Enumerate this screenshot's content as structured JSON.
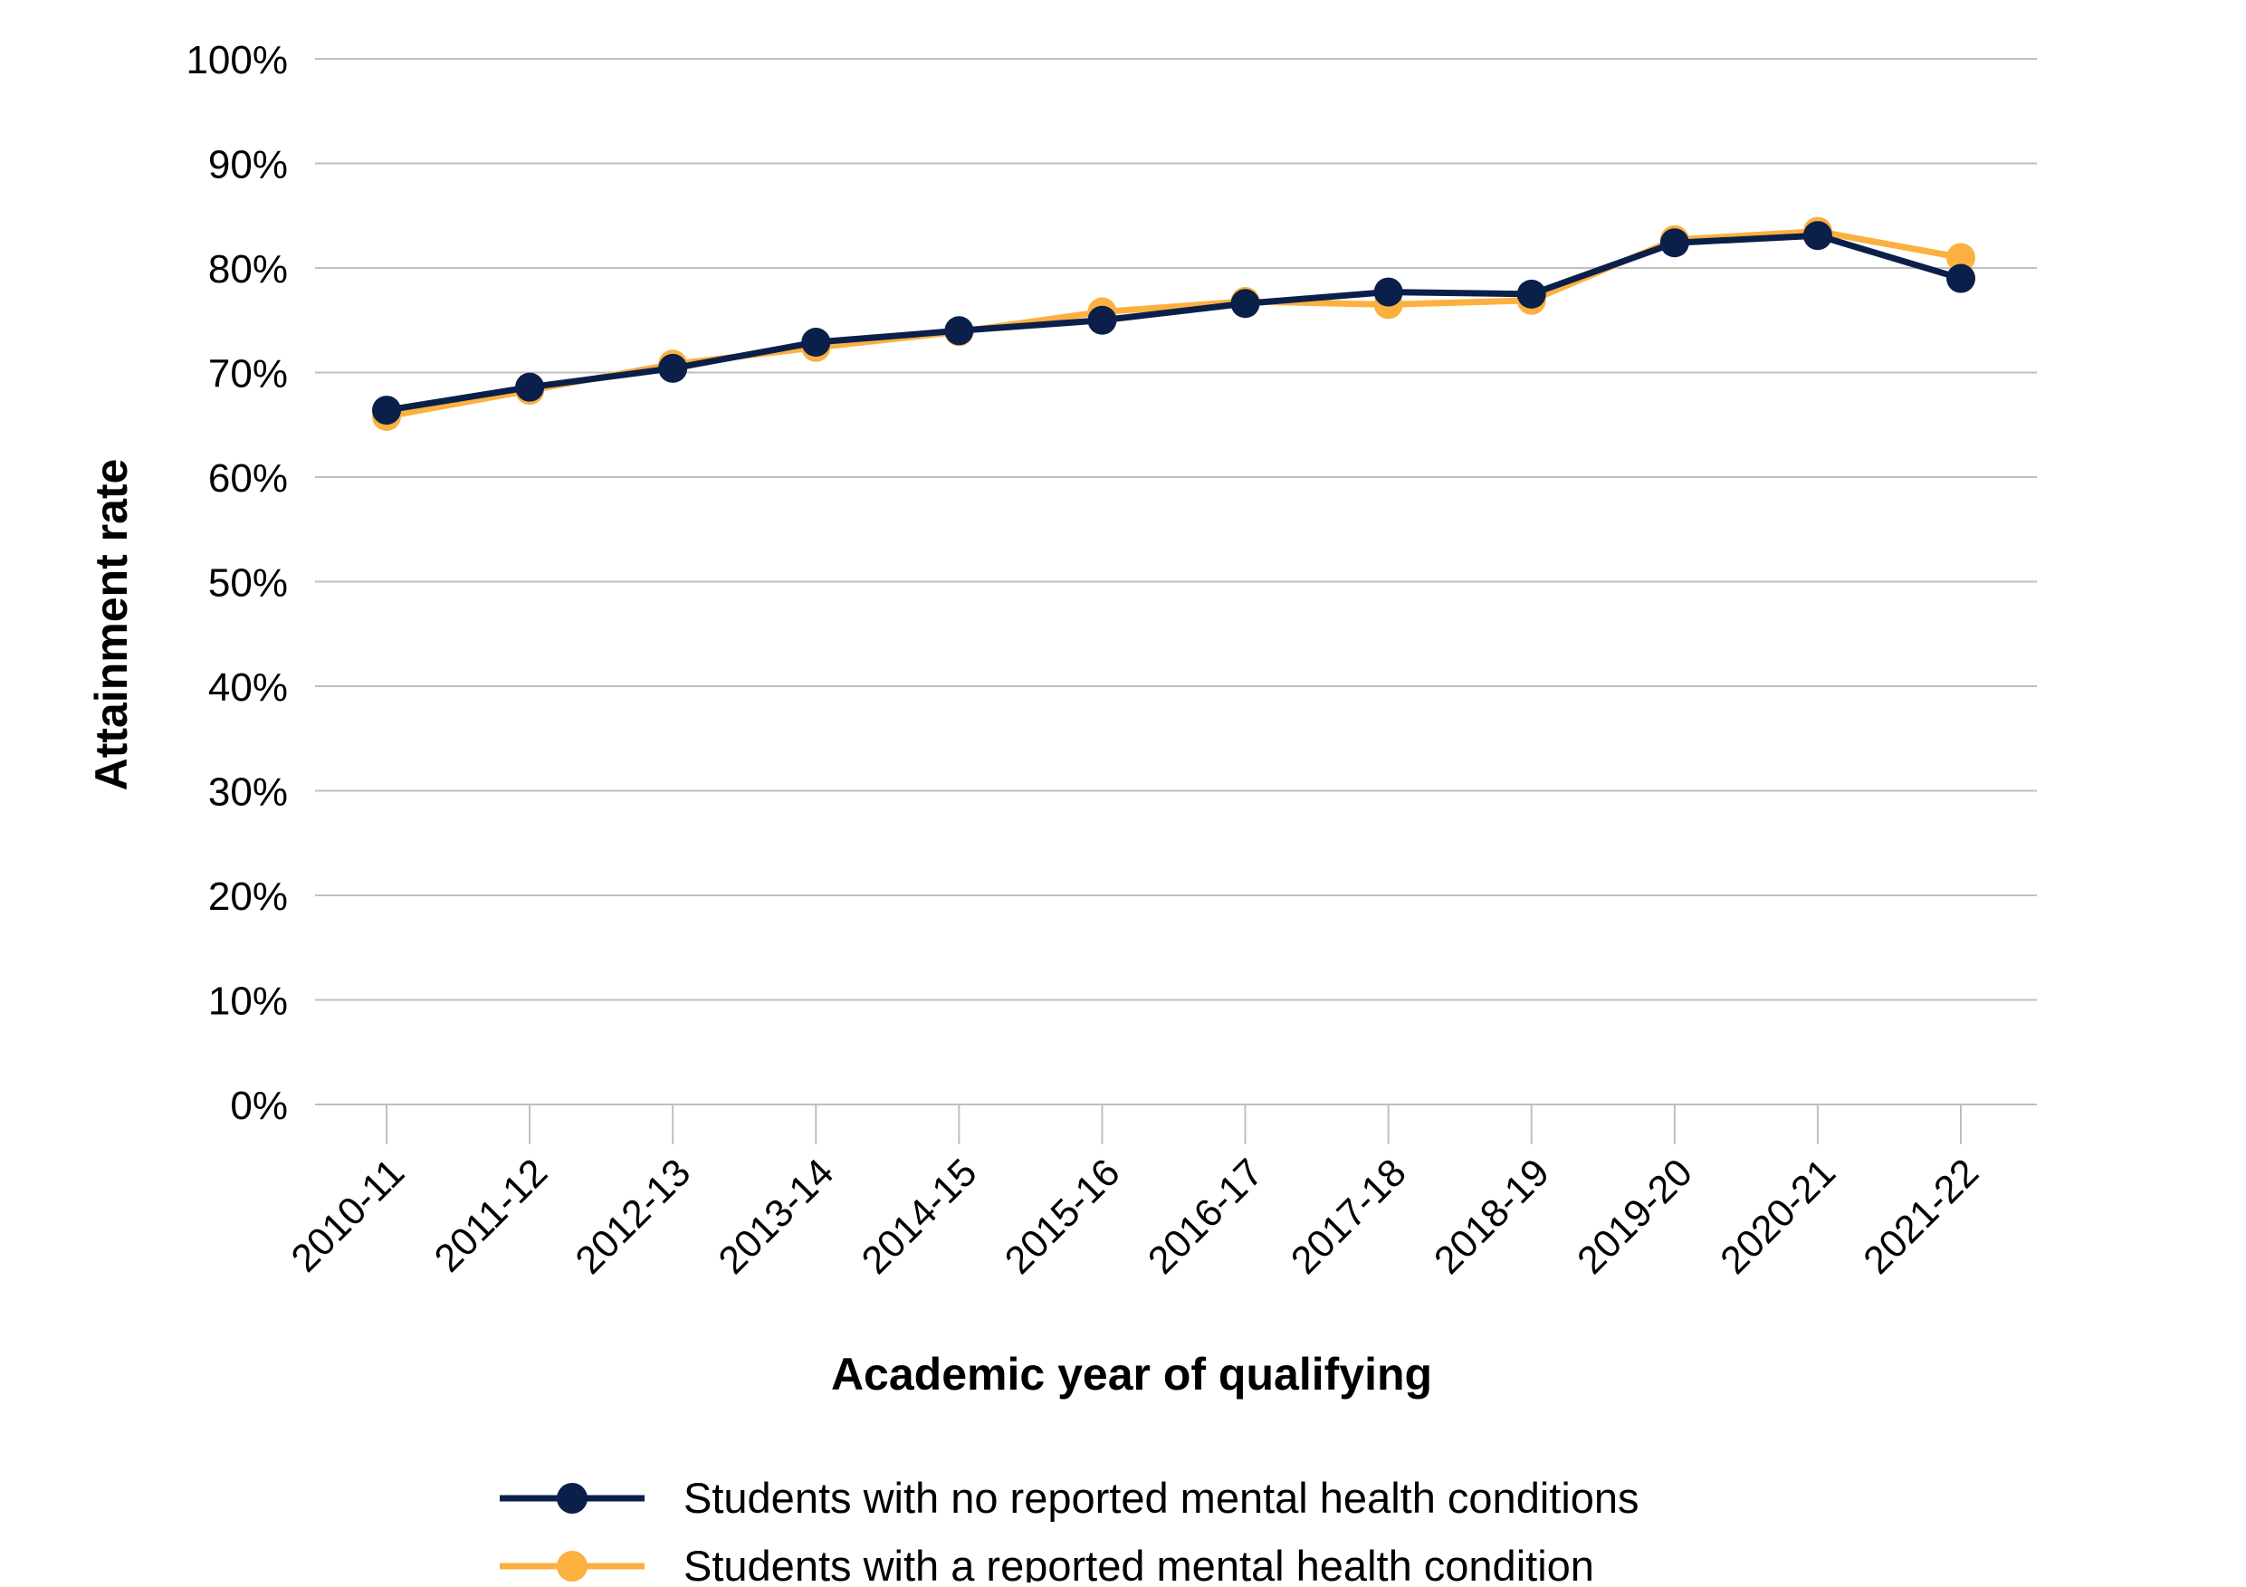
{
  "chart_data": {
    "type": "line",
    "title": "",
    "xlabel": "Academic year of qualifying",
    "ylabel": "Attainment rate",
    "categories": [
      "2010-11",
      "2011-12",
      "2012-13",
      "2013-14",
      "2014-15",
      "2015-16",
      "2016-17",
      "2017-18",
      "2018-19",
      "2019-20",
      "2020-21",
      "2021-22"
    ],
    "ylim": [
      0,
      100
    ],
    "yticks": [
      0,
      10,
      20,
      30,
      40,
      50,
      60,
      70,
      80,
      90,
      100
    ],
    "ytick_labels": [
      "0%",
      "10%",
      "20%",
      "30%",
      "40%",
      "50%",
      "60%",
      "70%",
      "80%",
      "90%",
      "100%"
    ],
    "grid": true,
    "legend_position": "bottom",
    "series": [
      {
        "name": "Students with a reported mental health condition",
        "color": "#FBB040",
        "values": [
          65.8,
          68.3,
          70.8,
          72.4,
          73.9,
          75.8,
          76.8,
          76.5,
          76.9,
          82.7,
          83.5,
          81.0
        ]
      },
      {
        "name": "Students with no reported mental health conditions",
        "color": "#0B1F4B",
        "values": [
          66.4,
          68.6,
          70.4,
          72.9,
          74.0,
          75.0,
          76.6,
          77.7,
          77.5,
          82.4,
          83.1,
          79.0
        ]
      }
    ],
    "legend_order": [
      1,
      0
    ]
  }
}
